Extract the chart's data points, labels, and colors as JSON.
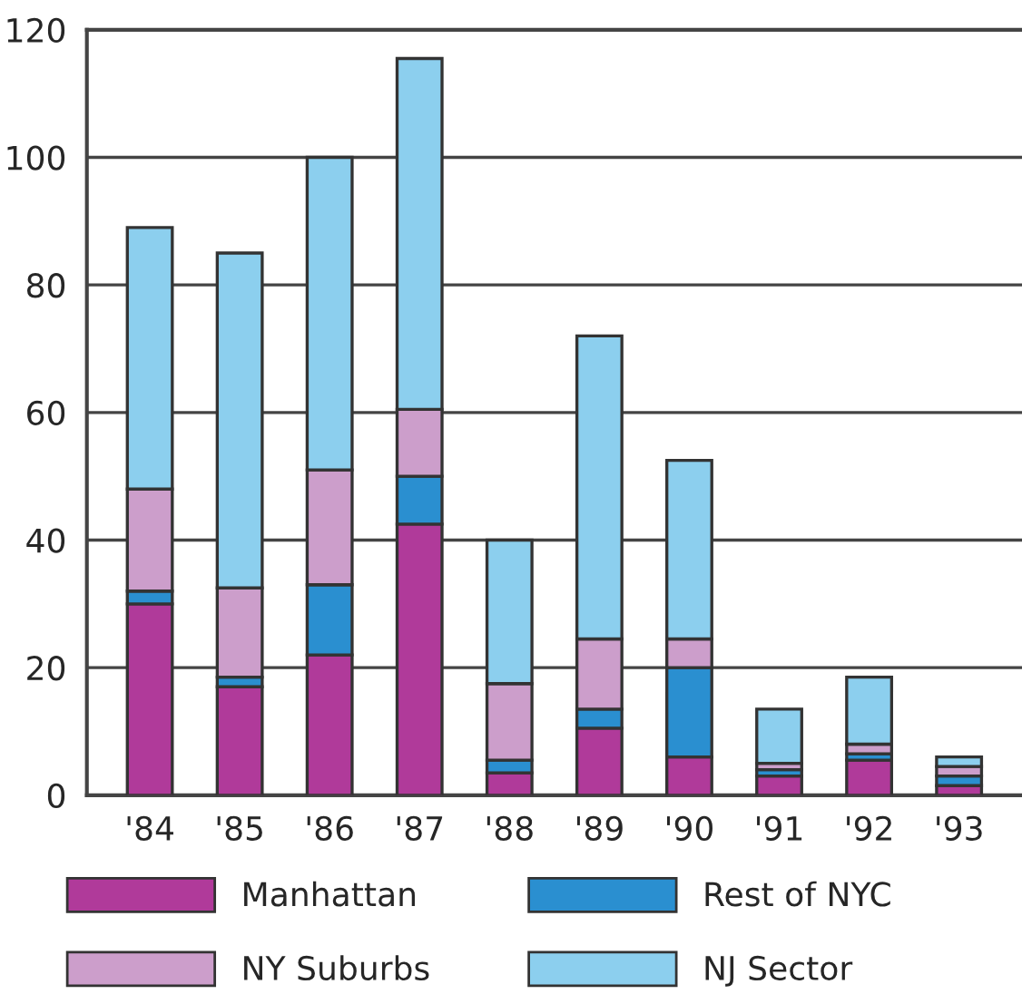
{
  "chart_data": {
    "type": "bar",
    "stacked": true,
    "categories": [
      "'84",
      "'85",
      "'86",
      "'87",
      "'88",
      "'89",
      "'90",
      "'91",
      "'92",
      "'93"
    ],
    "series": [
      {
        "name": "Manhattan",
        "color": "#b03a9a",
        "values": [
          30,
          17,
          22,
          42.5,
          3.5,
          10.5,
          6,
          3,
          5.5,
          1.5
        ]
      },
      {
        "name": "Rest of NYC",
        "color": "#2a8fd0",
        "values": [
          2,
          1.5,
          11,
          7.5,
          2,
          3,
          14,
          1,
          1,
          1.5
        ]
      },
      {
        "name": "NY Suburbs",
        "color": "#cc9ecb",
        "values": [
          16,
          14,
          18,
          10.5,
          12,
          11,
          4.5,
          1,
          1.5,
          1.5
        ]
      },
      {
        "name": "NJ Sector",
        "color": "#8ccfee",
        "values": [
          41,
          52.5,
          49,
          55,
          22.5,
          47.5,
          28,
          8.5,
          10.5,
          1.5
        ]
      }
    ],
    "ylim": [
      0,
      120
    ],
    "yticks": [
      0,
      20,
      40,
      60,
      80,
      100,
      120
    ],
    "grid": "y",
    "legend": "bottom"
  }
}
